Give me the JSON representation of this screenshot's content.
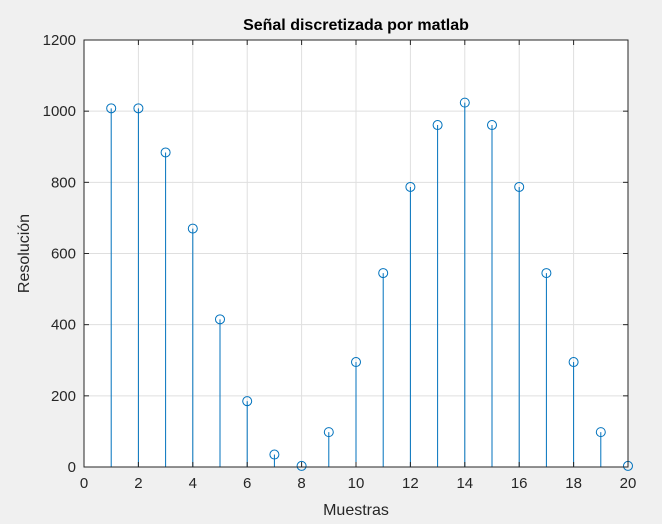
{
  "chart_data": {
    "type": "stem",
    "title": "Señal discretizada por matlab",
    "xlabel": "Muestras",
    "ylabel": "Resolución",
    "xlim": [
      0,
      20
    ],
    "ylim": [
      0,
      1200
    ],
    "xticks": [
      0,
      2,
      4,
      6,
      8,
      10,
      12,
      14,
      16,
      18,
      20
    ],
    "yticks": [
      0,
      200,
      400,
      600,
      800,
      1000,
      1200
    ],
    "grid": true,
    "color": "#0072bd",
    "x": [
      1,
      2,
      3,
      4,
      5,
      6,
      7,
      8,
      9,
      10,
      11,
      12,
      13,
      14,
      15,
      16,
      17,
      18,
      19,
      20
    ],
    "values": [
      1008,
      1008,
      884,
      670,
      415,
      185,
      35,
      3,
      98,
      295,
      545,
      787,
      961,
      1024,
      961,
      787,
      545,
      295,
      98,
      3
    ]
  }
}
